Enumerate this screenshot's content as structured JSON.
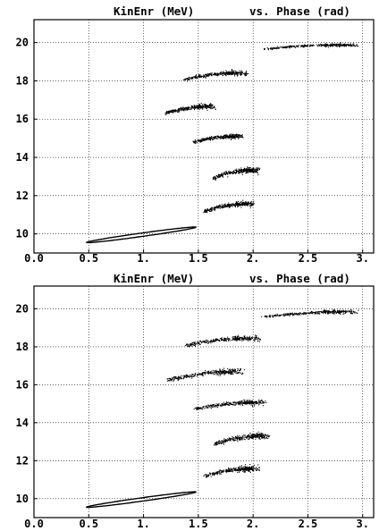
{
  "chart_data": [
    {
      "type": "scatter",
      "title_left": "KinEnr (MeV)",
      "title_right": "vs. Phase (rad)",
      "xlabel": "Phase (rad)",
      "ylabel": "KinEnr (MeV)",
      "xlim": [
        0.0,
        3.1
      ],
      "ylim": [
        9.0,
        21.2
      ],
      "xticks": [
        "0.0",
        "0.5",
        "1.",
        "1.5",
        "2.",
        "2.5",
        "3."
      ],
      "xtick_values": [
        0.0,
        0.5,
        1.0,
        1.5,
        2.0,
        2.5,
        3.0
      ],
      "yticks": [
        "10",
        "12",
        "14",
        "16",
        "18",
        "20"
      ],
      "ytick_values": [
        10,
        12,
        14,
        16,
        18,
        20
      ],
      "grid": "dotted",
      "series": [
        {
          "x_range": [
            0.48,
            1.48
          ],
          "y_range": [
            9.55,
            10.35
          ]
        },
        {
          "x_range": [
            1.5,
            2.0
          ],
          "y_range": [
            11.05,
            11.95
          ]
        },
        {
          "x_range": [
            1.58,
            2.05
          ],
          "y_range": [
            12.75,
            13.75
          ]
        },
        {
          "x_range": [
            1.4,
            1.9
          ],
          "y_range": [
            14.7,
            15.4
          ]
        },
        {
          "x_range": [
            1.15,
            1.65
          ],
          "y_range": [
            16.2,
            17.0
          ]
        },
        {
          "x_range": [
            1.3,
            1.95
          ],
          "y_range": [
            17.95,
            18.75
          ]
        },
        {
          "x_range": [
            2.0,
            2.95
          ],
          "y_range": [
            19.6,
            20.1
          ]
        }
      ]
    },
    {
      "type": "scatter",
      "title_left": "KinEnr (MeV)",
      "title_right": "vs. Phase (rad)",
      "xlabel": "Phase (rad)",
      "ylabel": "KinEnr (MeV)",
      "xlim": [
        0.0,
        3.1
      ],
      "ylim": [
        9.0,
        21.2
      ],
      "xticks": [
        "0.0",
        "0.5",
        "1.",
        "1.5",
        "2.",
        "2.5",
        "3."
      ],
      "xtick_values": [
        0.0,
        0.5,
        1.0,
        1.5,
        2.0,
        2.5,
        3.0
      ],
      "yticks": [
        "10",
        "12",
        "14",
        "16",
        "18",
        "20"
      ],
      "ytick_values": [
        10,
        12,
        14,
        16,
        18,
        20
      ],
      "grid": "dotted",
      "series": [
        {
          "x_range": [
            0.48,
            1.48
          ],
          "y_range": [
            9.55,
            10.35
          ]
        },
        {
          "x_range": [
            1.5,
            2.05
          ],
          "y_range": [
            11.05,
            11.95
          ]
        },
        {
          "x_range": [
            1.58,
            2.15
          ],
          "y_range": [
            12.7,
            13.75
          ]
        },
        {
          "x_range": [
            1.4,
            2.1
          ],
          "y_range": [
            14.6,
            15.4
          ]
        },
        {
          "x_range": [
            1.15,
            1.9
          ],
          "y_range": [
            16.1,
            17.1
          ]
        },
        {
          "x_range": [
            1.3,
            2.05
          ],
          "y_range": [
            17.95,
            18.8
          ]
        },
        {
          "x_range": [
            2.0,
            2.95
          ],
          "y_range": [
            19.5,
            20.1
          ]
        }
      ]
    }
  ]
}
